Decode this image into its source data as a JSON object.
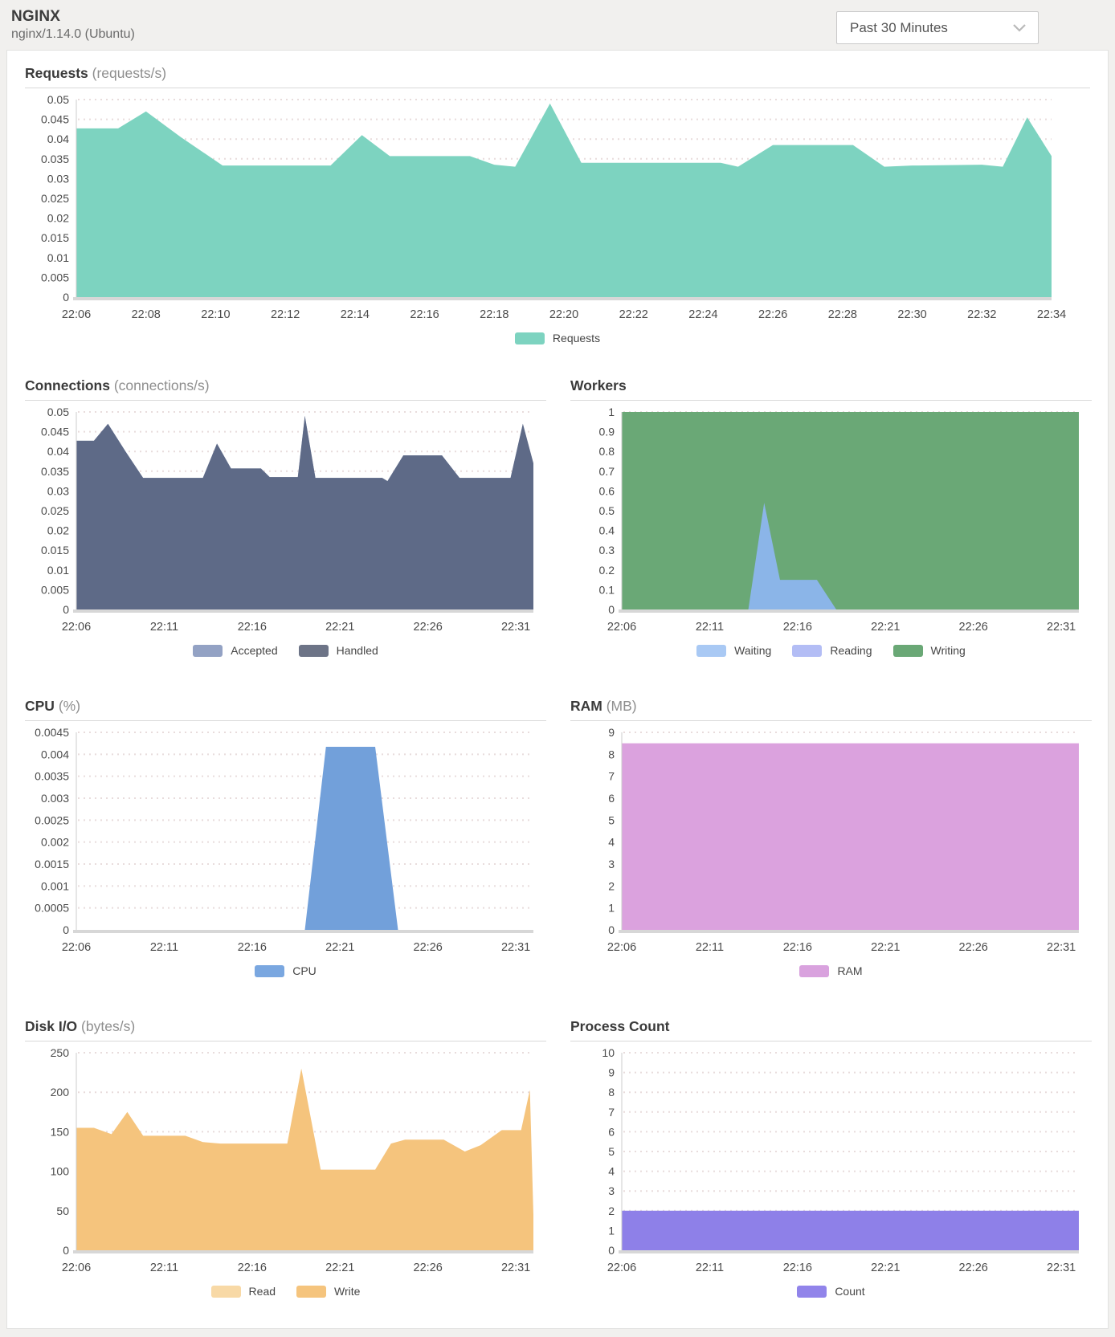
{
  "header": {
    "app_title": "NGINX",
    "app_subtitle": "nginx/1.14.0 (Ubuntu)"
  },
  "time_selector": {
    "value": "Past 30 Minutes"
  },
  "colors": {
    "requests_teal": "#7dd3c0",
    "connections_slate": "#5e6a87",
    "workers_green": "#6aa876",
    "workers_waiting_blue": "#8bb5e8",
    "cpu_blue": "#72a0da",
    "ram_pink": "#dba2de",
    "disk_orange": "#f5c47d",
    "process_purple": "#8e80e8",
    "grid_dots": "#e8dcdc",
    "axis_line": "#cccccc",
    "baseline": "#d7d7d7",
    "tick_text": "#4a4a4a"
  },
  "chart_data": [
    {
      "id": "requests",
      "type": "area",
      "full_width": true,
      "title": "Requests",
      "unit": "(requests/s)",
      "ylim": [
        0,
        0.05
      ],
      "y_ticks": [
        0,
        0.005,
        0.01,
        0.015,
        0.02,
        0.025,
        0.03,
        0.035,
        0.04,
        0.045,
        0.05
      ],
      "x_max": 28,
      "x_tick_positions": [
        0,
        2,
        4,
        6,
        8,
        10,
        12,
        14,
        16,
        18,
        20,
        22,
        24,
        26,
        28
      ],
      "x_labels": [
        "22:06",
        "22:08",
        "22:10",
        "22:12",
        "22:14",
        "22:16",
        "22:18",
        "22:20",
        "22:22",
        "22:24",
        "22:26",
        "22:28",
        "22:30",
        "22:32",
        "22:34"
      ],
      "grid": true,
      "legend_position": "bottom",
      "series": [
        {
          "name": "Requests",
          "color": "#7dd3c0",
          "points": [
            [
              0,
              0.0427
            ],
            [
              1.2,
              0.0427
            ],
            [
              2,
              0.047
            ],
            [
              3,
              0.0405
            ],
            [
              4.2,
              0.0333
            ],
            [
              7.3,
              0.0333
            ],
            [
              8.2,
              0.041
            ],
            [
              9,
              0.0357
            ],
            [
              11.3,
              0.0357
            ],
            [
              12,
              0.0335
            ],
            [
              12.6,
              0.033
            ],
            [
              13.6,
              0.049
            ],
            [
              14.5,
              0.034
            ],
            [
              18.5,
              0.034
            ],
            [
              19,
              0.033
            ],
            [
              20,
              0.0385
            ],
            [
              22.3,
              0.0385
            ],
            [
              23.2,
              0.033
            ],
            [
              24,
              0.0333
            ],
            [
              26,
              0.0335
            ],
            [
              26.6,
              0.033
            ],
            [
              27.3,
              0.0455
            ],
            [
              28,
              0.0357
            ]
          ]
        }
      ],
      "legend": [
        {
          "label": "Requests",
          "color": "#7dd3c0"
        }
      ]
    },
    {
      "id": "connections",
      "type": "area",
      "full_width": false,
      "title": "Connections",
      "unit": "(connections/s)",
      "ylim": [
        0,
        0.05
      ],
      "y_ticks": [
        0,
        0.005,
        0.01,
        0.015,
        0.02,
        0.025,
        0.03,
        0.035,
        0.04,
        0.045,
        0.05
      ],
      "x_max": 26,
      "x_tick_positions": [
        0,
        5,
        10,
        15,
        20,
        25
      ],
      "x_labels": [
        "22:06",
        "22:11",
        "22:16",
        "22:21",
        "22:26",
        "22:31"
      ],
      "grid": true,
      "legend_position": "bottom",
      "series": [
        {
          "name": "Accepted",
          "color": "#93a2c4",
          "points": [
            [
              0,
              0.0427
            ],
            [
              1,
              0.0427
            ],
            [
              1.8,
              0.047
            ],
            [
              2.8,
              0.04
            ],
            [
              3.8,
              0.0333
            ],
            [
              7.2,
              0.0333
            ],
            [
              8,
              0.042
            ],
            [
              8.8,
              0.0357
            ],
            [
              10.5,
              0.0357
            ],
            [
              11,
              0.0335
            ],
            [
              12.6,
              0.0335
            ],
            [
              13,
              0.049
            ],
            [
              13.6,
              0.0333
            ],
            [
              17.4,
              0.0333
            ],
            [
              17.7,
              0.0325
            ],
            [
              18.6,
              0.039
            ],
            [
              20.8,
              0.039
            ],
            [
              21.8,
              0.0333
            ],
            [
              24.7,
              0.0333
            ],
            [
              25.4,
              0.047
            ],
            [
              26,
              0.037
            ]
          ]
        },
        {
          "name": "Handled",
          "color": "#5e6a87",
          "points": [
            [
              0,
              0.0427
            ],
            [
              1,
              0.0427
            ],
            [
              1.8,
              0.047
            ],
            [
              2.8,
              0.04
            ],
            [
              3.8,
              0.0333
            ],
            [
              7.2,
              0.0333
            ],
            [
              8,
              0.042
            ],
            [
              8.8,
              0.0357
            ],
            [
              10.5,
              0.0357
            ],
            [
              11,
              0.0335
            ],
            [
              12.6,
              0.0335
            ],
            [
              13,
              0.049
            ],
            [
              13.6,
              0.0333
            ],
            [
              17.4,
              0.0333
            ],
            [
              17.7,
              0.0325
            ],
            [
              18.6,
              0.039
            ],
            [
              20.8,
              0.039
            ],
            [
              21.8,
              0.0333
            ],
            [
              24.7,
              0.0333
            ],
            [
              25.4,
              0.047
            ],
            [
              26,
              0.037
            ]
          ]
        }
      ],
      "legend": [
        {
          "label": "Accepted",
          "color": "#93a2c4"
        },
        {
          "label": "Handled",
          "color": "#6d7487"
        }
      ]
    },
    {
      "id": "workers",
      "type": "area",
      "full_width": false,
      "title": "Workers",
      "unit": "",
      "ylim": [
        0,
        1
      ],
      "y_ticks": [
        0,
        0.1,
        0.2,
        0.3,
        0.4,
        0.5,
        0.6,
        0.7,
        0.8,
        0.9,
        1
      ],
      "x_max": 26,
      "x_tick_positions": [
        0,
        5,
        10,
        15,
        20,
        25
      ],
      "x_labels": [
        "22:06",
        "22:11",
        "22:16",
        "22:21",
        "22:26",
        "22:31"
      ],
      "grid": true,
      "legend_position": "bottom",
      "series": [
        {
          "name": "Writing",
          "color": "#6aa876",
          "points": [
            [
              0,
              1
            ],
            [
              26,
              1
            ]
          ]
        },
        {
          "name": "Waiting",
          "color": "#8bb5e8",
          "points": [
            [
              0,
              0
            ],
            [
              7.2,
              0
            ],
            [
              8.1,
              0.54
            ],
            [
              9,
              0.15
            ],
            [
              11.1,
              0.15
            ],
            [
              12.2,
              0
            ],
            [
              26,
              0
            ]
          ]
        },
        {
          "name": "Reading",
          "color": "#b3bdf5",
          "points": [
            [
              0,
              0
            ],
            [
              26,
              0
            ]
          ]
        }
      ],
      "legend": [
        {
          "label": "Waiting",
          "color": "#a9c9f4"
        },
        {
          "label": "Reading",
          "color": "#b3bdf5"
        },
        {
          "label": "Writing",
          "color": "#6aa876"
        }
      ]
    },
    {
      "id": "cpu",
      "type": "area",
      "full_width": false,
      "title": "CPU",
      "unit": "(%)",
      "ylim": [
        0,
        0.0045
      ],
      "y_ticks": [
        0,
        0.0005,
        0.001,
        0.0015,
        0.002,
        0.0025,
        0.003,
        0.0035,
        0.004,
        0.0045
      ],
      "x_max": 26,
      "x_tick_positions": [
        0,
        5,
        10,
        15,
        20,
        25
      ],
      "x_labels": [
        "22:06",
        "22:11",
        "22:16",
        "22:21",
        "22:26",
        "22:31"
      ],
      "grid": true,
      "legend_position": "bottom",
      "series": [
        {
          "name": "CPU",
          "color": "#72a0da",
          "points": [
            [
              0,
              0
            ],
            [
              13,
              0
            ],
            [
              14.2,
              0.00417
            ],
            [
              17,
              0.00417
            ],
            [
              18.3,
              0
            ],
            [
              26,
              0
            ]
          ]
        }
      ],
      "legend": [
        {
          "label": "CPU",
          "color": "#7aa7e0"
        }
      ]
    },
    {
      "id": "ram",
      "type": "area",
      "full_width": false,
      "title": "RAM",
      "unit": "(MB)",
      "ylim": [
        0,
        9
      ],
      "y_ticks": [
        0,
        1,
        2,
        3,
        4,
        5,
        6,
        7,
        8,
        9
      ],
      "x_max": 26,
      "x_tick_positions": [
        0,
        5,
        10,
        15,
        20,
        25
      ],
      "x_labels": [
        "22:06",
        "22:11",
        "22:16",
        "22:21",
        "22:26",
        "22:31"
      ],
      "grid": true,
      "legend_position": "bottom",
      "series": [
        {
          "name": "RAM",
          "color": "#dba2de",
          "points": [
            [
              0,
              8.5
            ],
            [
              26,
              8.5
            ]
          ]
        }
      ],
      "legend": [
        {
          "label": "RAM",
          "color": "#d9a2de"
        }
      ]
    },
    {
      "id": "disk-io",
      "type": "area",
      "full_width": false,
      "title": "Disk I/O",
      "unit": "(bytes/s)",
      "ylim": [
        0,
        250
      ],
      "y_ticks": [
        0,
        50,
        100,
        150,
        200,
        250
      ],
      "x_max": 26,
      "x_tick_positions": [
        0,
        5,
        10,
        15,
        20,
        25
      ],
      "x_labels": [
        "22:06",
        "22:11",
        "22:16",
        "22:21",
        "22:26",
        "22:31"
      ],
      "grid": true,
      "legend_position": "bottom",
      "series": [
        {
          "name": "Read",
          "color": "#f8d9a6",
          "points": [
            [
              0,
              0
            ],
            [
              26,
              0
            ]
          ]
        },
        {
          "name": "Write",
          "color": "#f5c47d",
          "points": [
            [
              0,
              155
            ],
            [
              1,
              155
            ],
            [
              2,
              147
            ],
            [
              2.9,
              175
            ],
            [
              3.8,
              145
            ],
            [
              6.2,
              145
            ],
            [
              7.2,
              137
            ],
            [
              8.2,
              135
            ],
            [
              12,
              135
            ],
            [
              12.8,
              230
            ],
            [
              13.9,
              102
            ],
            [
              17,
              102
            ],
            [
              17.9,
              135
            ],
            [
              18.7,
              140
            ],
            [
              20.9,
              140
            ],
            [
              22.1,
              125
            ],
            [
              23,
              133
            ],
            [
              24.2,
              152
            ],
            [
              25.3,
              152
            ],
            [
              25.8,
              203
            ],
            [
              26,
              45
            ]
          ]
        }
      ],
      "legend": [
        {
          "label": "Read",
          "color": "#f8d9a6"
        },
        {
          "label": "Write",
          "color": "#f5c47d"
        }
      ]
    },
    {
      "id": "process-count",
      "type": "area",
      "full_width": false,
      "title": "Process Count",
      "unit": "",
      "ylim": [
        0,
        10
      ],
      "y_ticks": [
        0,
        1,
        2,
        3,
        4,
        5,
        6,
        7,
        8,
        9,
        10
      ],
      "x_max": 26,
      "x_tick_positions": [
        0,
        5,
        10,
        15,
        20,
        25
      ],
      "x_labels": [
        "22:06",
        "22:11",
        "22:16",
        "22:21",
        "22:26",
        "22:31"
      ],
      "grid": true,
      "legend_position": "bottom",
      "series": [
        {
          "name": "Count",
          "color": "#8e80e8",
          "points": [
            [
              0,
              2
            ],
            [
              26,
              2
            ]
          ]
        }
      ],
      "legend": [
        {
          "label": "Count",
          "color": "#9184ea"
        }
      ]
    }
  ]
}
